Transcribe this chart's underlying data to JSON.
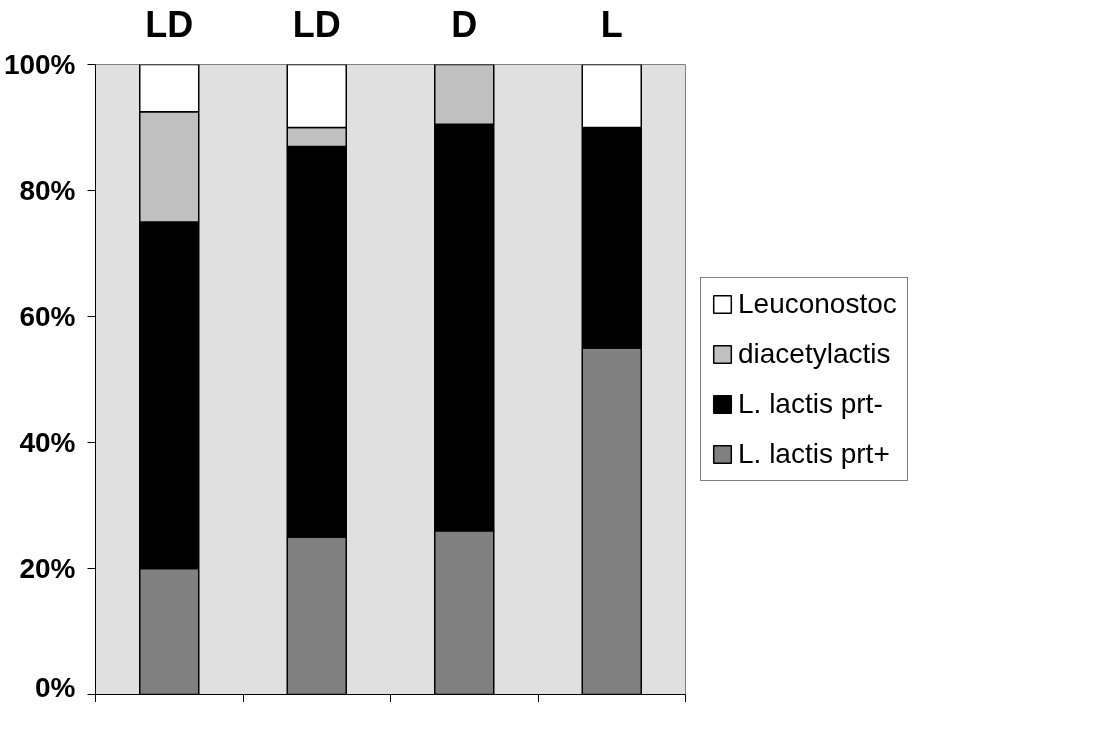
{
  "chart_data": {
    "type": "bar",
    "stacked": true,
    "categories": [
      "LD",
      "LD",
      "D",
      "L"
    ],
    "series": [
      {
        "name": "L. lactis prt+",
        "color": "#808080",
        "values": [
          20,
          25,
          26,
          55
        ]
      },
      {
        "name": "L. lactis prt-",
        "color": "#000000",
        "values": [
          55,
          62,
          64.5,
          35
        ]
      },
      {
        "name": "diacetylactis",
        "color": "#c0c0c0",
        "values": [
          17.5,
          3,
          9.5,
          0
        ]
      },
      {
        "name": "Leuconostoc",
        "color": "#ffffff",
        "values": [
          7.5,
          10,
          0,
          10
        ]
      }
    ],
    "ylim": [
      0,
      100
    ],
    "yticks": [
      {
        "value": 0,
        "label": "0%"
      },
      {
        "value": 20,
        "label": "20%"
      },
      {
        "value": 40,
        "label": "40%"
      },
      {
        "value": 60,
        "label": "60%"
      },
      {
        "value": 80,
        "label": "80%"
      },
      {
        "value": 100,
        "label": "100%"
      }
    ],
    "grid": false,
    "legend": "right"
  }
}
